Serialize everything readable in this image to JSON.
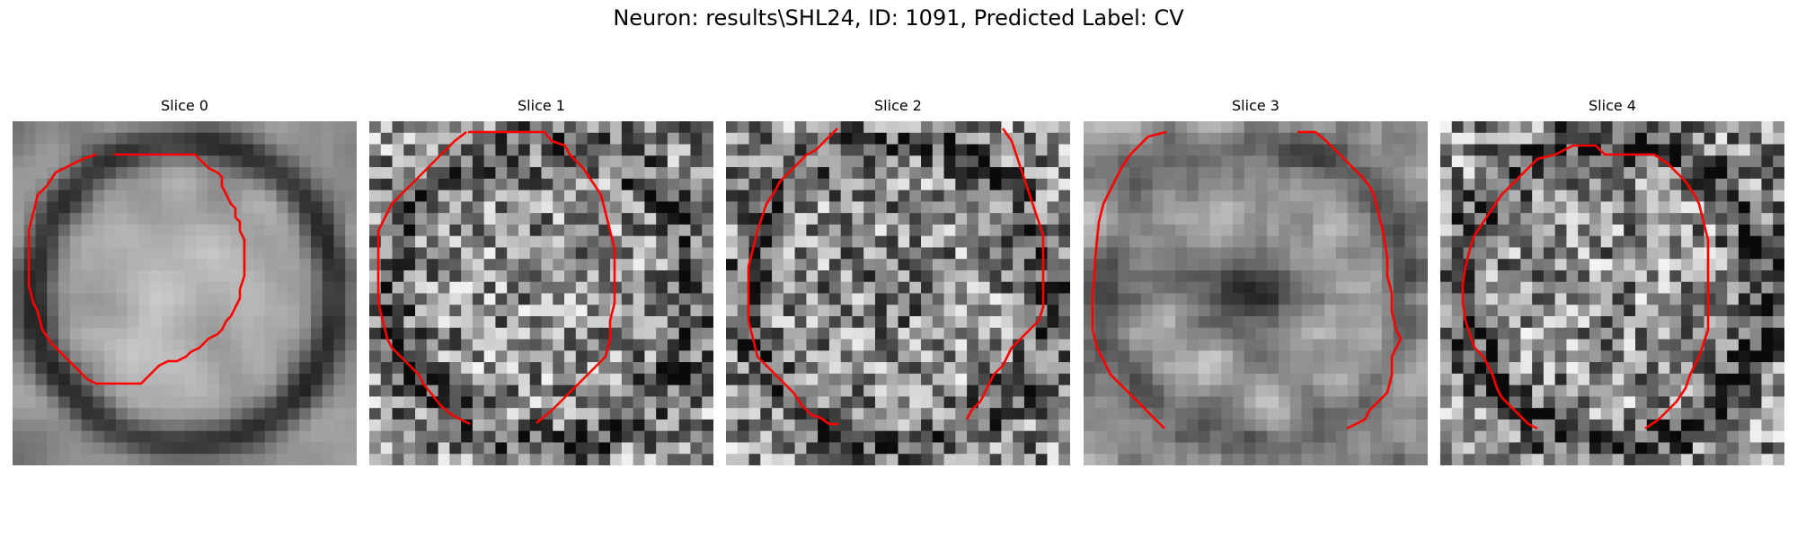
{
  "figure": {
    "title": "Neuron: results\\SHL24, ID: 1091, Predicted Label: CV",
    "colormap": "gray",
    "contour_color": "#ff0000",
    "grid_size": 30
  },
  "panels": [
    {
      "title": "Slice 0",
      "seed": 11,
      "blur": 2,
      "contrast": 1.1,
      "dark_ring": 0.45,
      "dark_center": 0.0,
      "brightness": 0.62
    },
    {
      "title": "Slice 1",
      "seed": 23,
      "blur": 0,
      "contrast": 1.45,
      "dark_ring": 0.25,
      "dark_center": 0.0,
      "brightness": 0.56
    },
    {
      "title": "Slice 2",
      "seed": 37,
      "blur": 0,
      "contrast": 1.45,
      "dark_ring": 0.25,
      "dark_center": 0.1,
      "brightness": 0.56
    },
    {
      "title": "Slice 3",
      "seed": 41,
      "blur": 1,
      "contrast": 1.3,
      "dark_ring": 0.2,
      "dark_center": 0.35,
      "brightness": 0.58
    },
    {
      "title": "Slice 4",
      "seed": 53,
      "blur": 0,
      "contrast": 1.45,
      "dark_ring": 0.35,
      "dark_center": 0.0,
      "brightness": 0.56
    }
  ]
}
